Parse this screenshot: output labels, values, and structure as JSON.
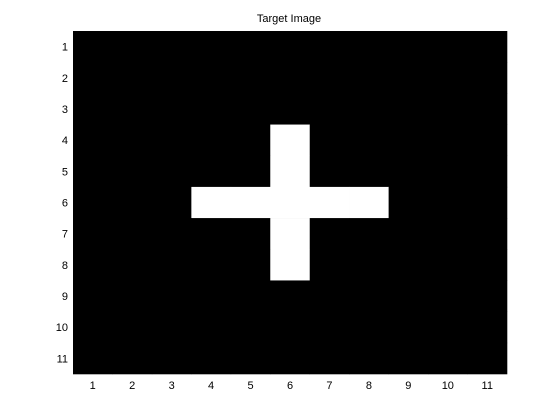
{
  "chart_data": {
    "type": "heatmap",
    "title": "Target Image",
    "xlabel": "",
    "ylabel": "",
    "x_ticks": [
      1,
      2,
      3,
      4,
      5,
      6,
      7,
      8,
      9,
      10,
      11
    ],
    "y_ticks": [
      1,
      2,
      3,
      4,
      5,
      6,
      7,
      8,
      9,
      10,
      11
    ],
    "xlim": [
      0.5,
      11.5
    ],
    "ylim": [
      0.5,
      11.5
    ],
    "y_direction": "reversed",
    "colormap": "gray",
    "grid": false,
    "values": [
      [
        0,
        0,
        0,
        0,
        0,
        0,
        0,
        0,
        0,
        0,
        0
      ],
      [
        0,
        0,
        0,
        0,
        0,
        0,
        0,
        0,
        0,
        0,
        0
      ],
      [
        0,
        0,
        0,
        0,
        0,
        0,
        0,
        0,
        0,
        0,
        0
      ],
      [
        0,
        0,
        0,
        0,
        0,
        1,
        0,
        0,
        0,
        0,
        0
      ],
      [
        0,
        0,
        0,
        0,
        0,
        1,
        0,
        0,
        0,
        0,
        0
      ],
      [
        0,
        0,
        0,
        1,
        1,
        1,
        1,
        1,
        0,
        0,
        0
      ],
      [
        0,
        0,
        0,
        0,
        0,
        1,
        0,
        0,
        0,
        0,
        0
      ],
      [
        0,
        0,
        0,
        0,
        0,
        1,
        0,
        0,
        0,
        0,
        0
      ],
      [
        0,
        0,
        0,
        0,
        0,
        0,
        0,
        0,
        0,
        0,
        0
      ],
      [
        0,
        0,
        0,
        0,
        0,
        0,
        0,
        0,
        0,
        0,
        0
      ],
      [
        0,
        0,
        0,
        0,
        0,
        0,
        0,
        0,
        0,
        0,
        0
      ]
    ],
    "colors": {
      "low": "#000000",
      "high": "#ffffff"
    }
  }
}
